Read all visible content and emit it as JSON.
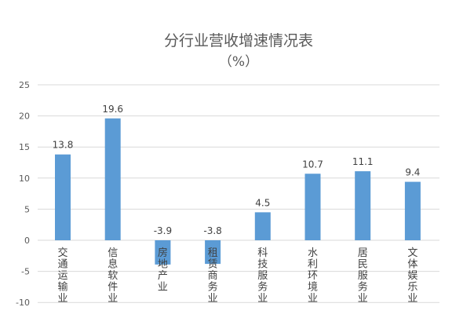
{
  "chart_data": {
    "type": "bar",
    "title": "分行业营收增速情况表",
    "subtitle": "（%）",
    "categories": [
      "交通运输业",
      "信息软件业",
      "房地产业",
      "租赁商务业",
      "科技服务业",
      "水利环境业",
      "居民服务业",
      "文体娱乐业"
    ],
    "values": [
      13.8,
      19.6,
      -3.9,
      -3.8,
      4.5,
      10.7,
      11.1,
      9.4
    ],
    "data_labels": [
      "13.8",
      "19.6",
      "-3.9",
      "-3.8",
      "4.5",
      "10.7",
      "11.1",
      "9.4"
    ],
    "ylim": [
      -10,
      25
    ],
    "yticks": [
      "-10",
      "-5",
      "0",
      "5",
      "10",
      "15",
      "20",
      "25"
    ],
    "grid": true,
    "legend": "none",
    "bar_color": "#5b9bd5"
  }
}
